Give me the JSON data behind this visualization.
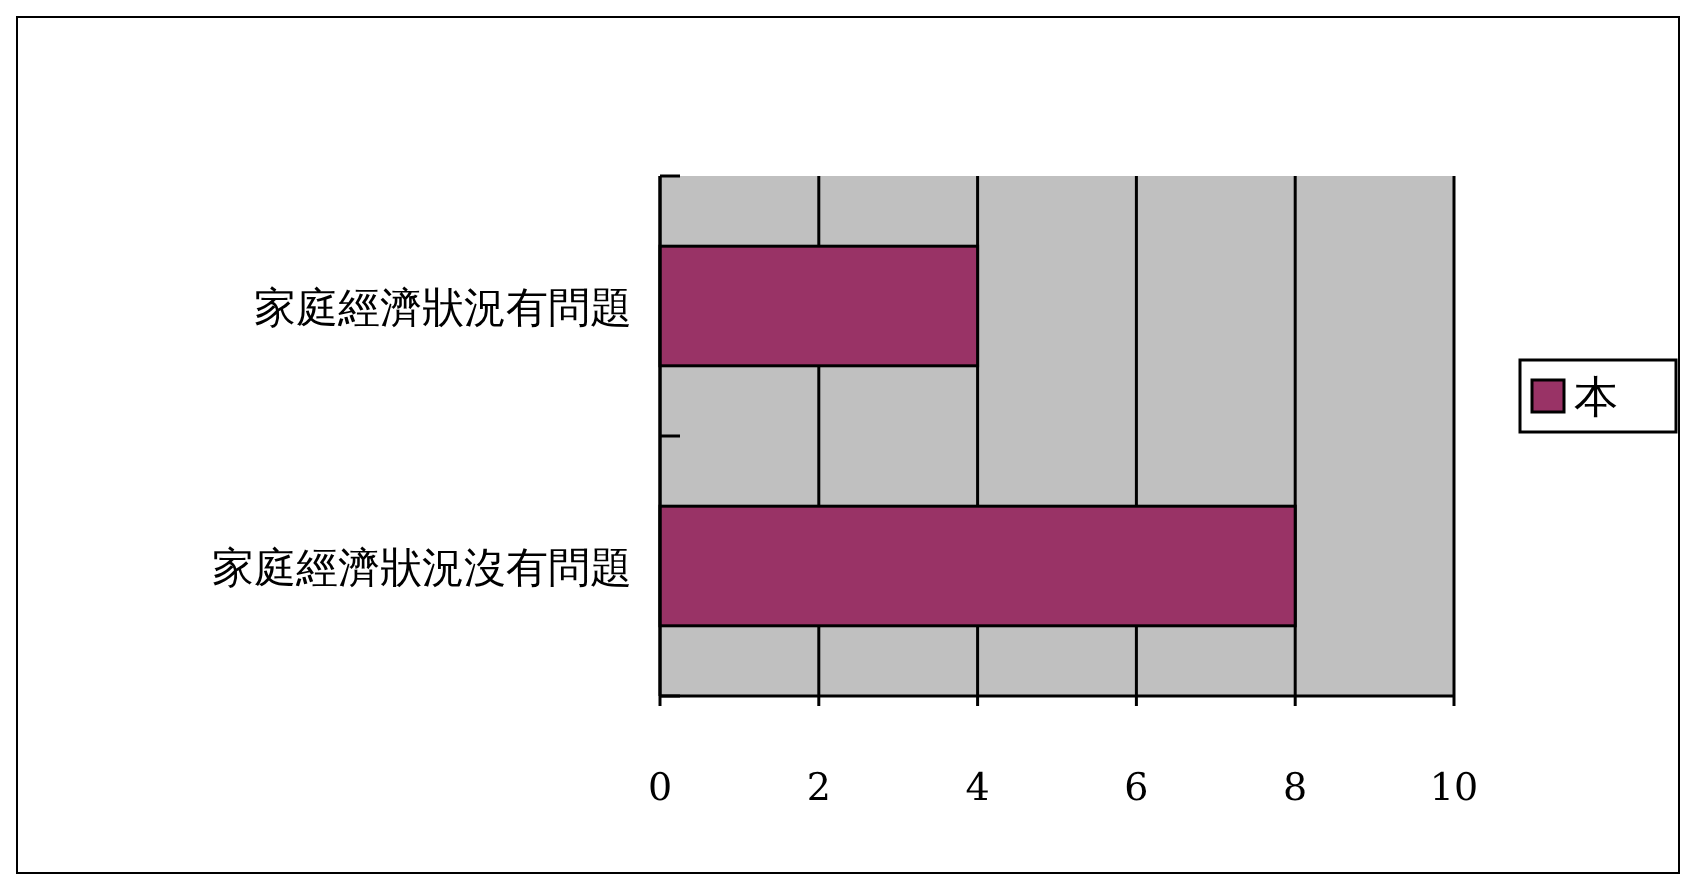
{
  "chart_data": {
    "type": "bar",
    "orientation": "horizontal",
    "categories": [
      "家庭經濟狀況有問題",
      "家庭經濟狀況沒有問題"
    ],
    "series": [
      {
        "name": "本",
        "color": "#993366",
        "values": [
          4,
          8
        ]
      }
    ],
    "xlim": [
      0,
      10
    ],
    "xticks": [
      0,
      2,
      4,
      6,
      8,
      10
    ],
    "grid": "x",
    "legend": "right"
  }
}
